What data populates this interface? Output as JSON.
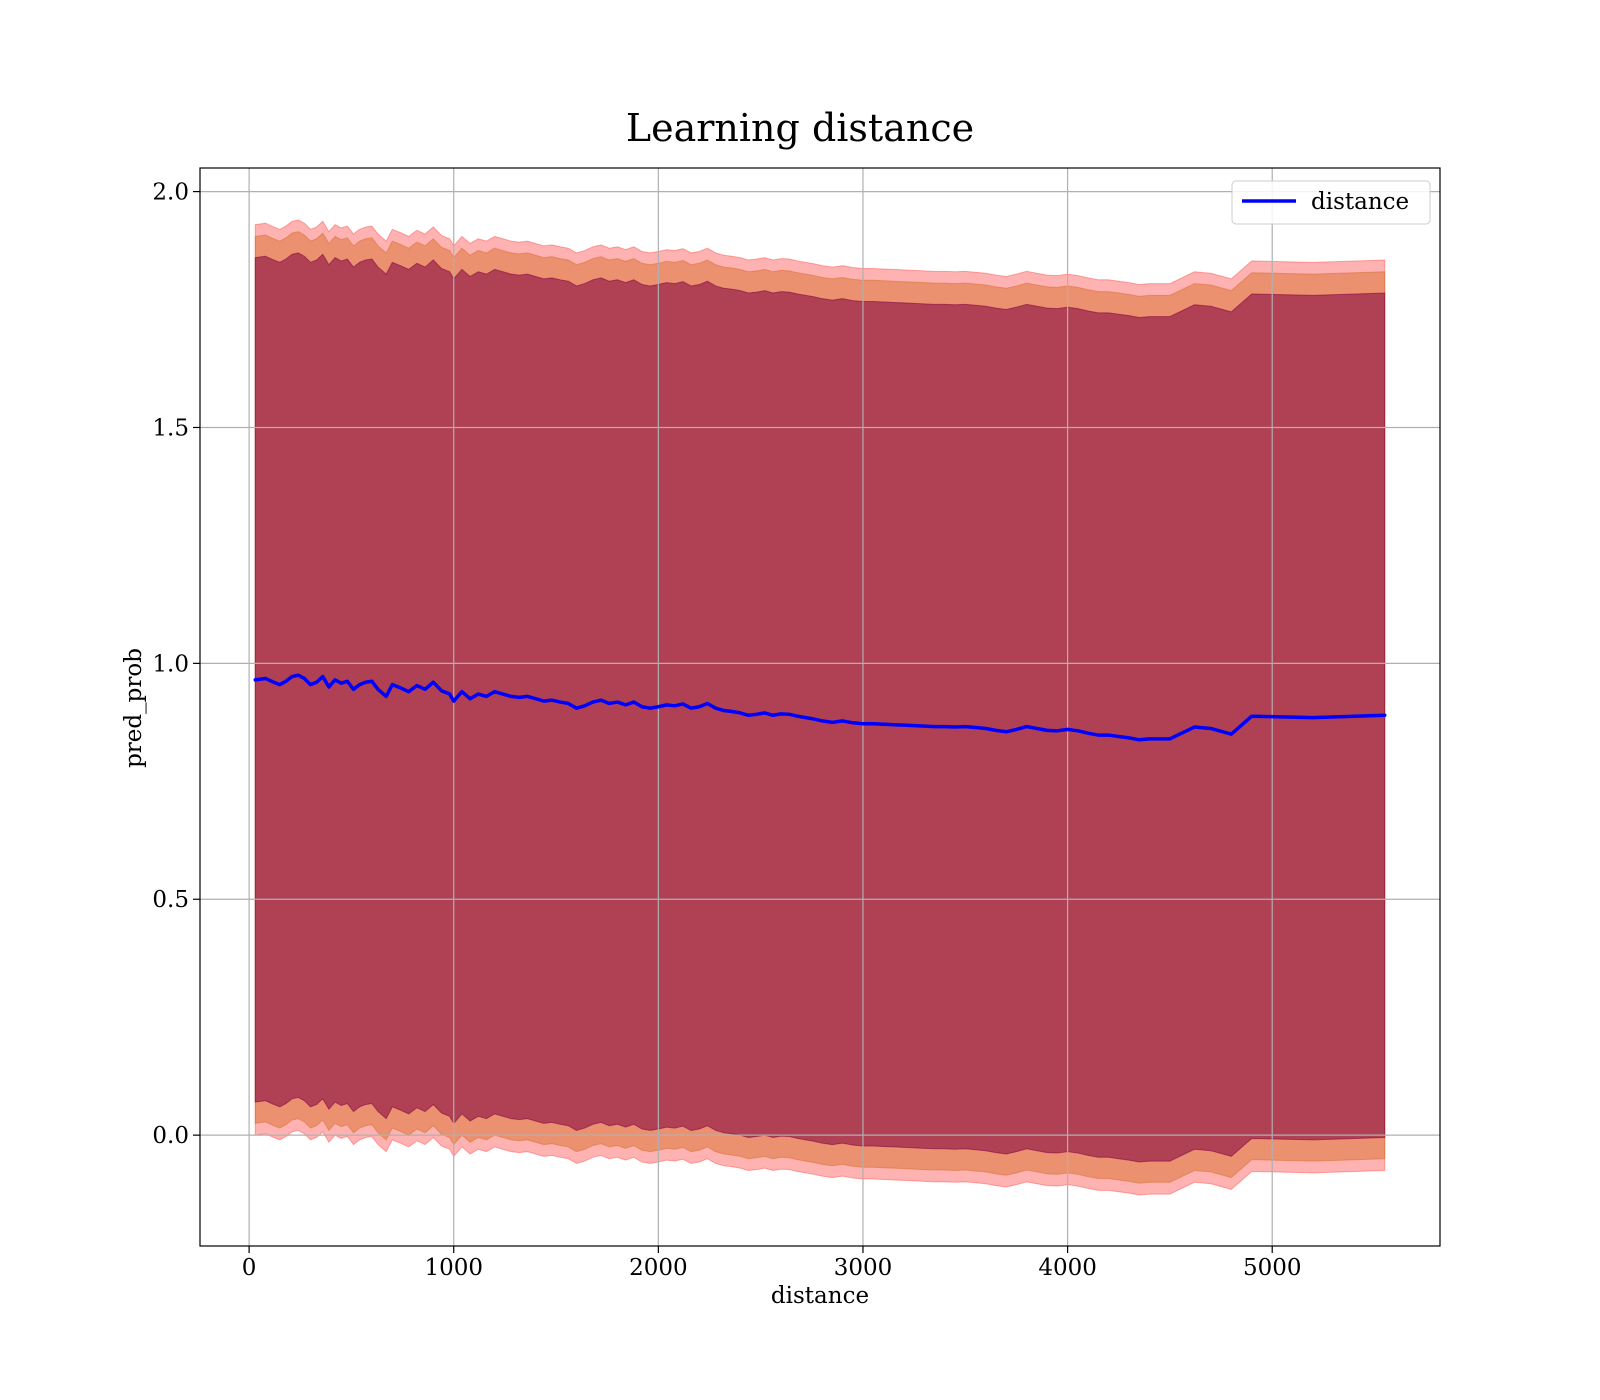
{
  "chart_data": {
    "type": "line",
    "title": "Learning distance",
    "xlabel": "distance",
    "ylabel": "pred_prob",
    "xlim": [
      -240,
      5820
    ],
    "ylim": [
      -0.235,
      2.05
    ],
    "xticks": [
      0,
      1000,
      2000,
      3000,
      4000,
      5000
    ],
    "xtick_labels": [
      "0",
      "1000",
      "2000",
      "3000",
      "4000",
      "5000"
    ],
    "yticks": [
      0.0,
      0.5,
      1.0,
      1.5,
      2.0
    ],
    "ytick_labels": [
      "0.0",
      "0.5",
      "1.0",
      "1.5",
      "2.0"
    ],
    "grid": true,
    "legend": {
      "position": "upper right",
      "entries": [
        "distance"
      ]
    },
    "colors": {
      "line": "#0000ff",
      "band_outer": "#ff0000",
      "band_middle": "#d2691e",
      "band_inner": "#800040",
      "grid": "#b0b0b0"
    },
    "series": [
      {
        "name": "distance",
        "x": [
          30,
          80,
          120,
          150,
          180,
          210,
          240,
          270,
          300,
          330,
          360,
          390,
          420,
          450,
          480,
          510,
          540,
          570,
          600,
          630,
          670,
          700,
          740,
          780,
          820,
          860,
          900,
          940,
          980,
          1000,
          1040,
          1080,
          1120,
          1160,
          1200,
          1240,
          1280,
          1320,
          1360,
          1400,
          1440,
          1480,
          1520,
          1560,
          1600,
          1640,
          1680,
          1720,
          1760,
          1800,
          1840,
          1880,
          1920,
          1960,
          2000,
          2040,
          2080,
          2120,
          2160,
          2200,
          2240,
          2280,
          2320,
          2360,
          2400,
          2440,
          2480,
          2520,
          2560,
          2600,
          2640,
          2680,
          2720,
          2760,
          2800,
          2850,
          2900,
          2950,
          3000,
          3050,
          3100,
          3150,
          3200,
          3250,
          3300,
          3350,
          3400,
          3450,
          3500,
          3550,
          3600,
          3650,
          3700,
          3750,
          3800,
          3850,
          3900,
          3950,
          4000,
          4050,
          4100,
          4150,
          4200,
          4250,
          4300,
          4350,
          4400,
          4500,
          4620,
          4700,
          4800,
          4900,
          5200,
          5550
        ],
        "y": [
          0.965,
          0.968,
          0.96,
          0.955,
          0.962,
          0.972,
          0.975,
          0.968,
          0.955,
          0.96,
          0.972,
          0.95,
          0.965,
          0.958,
          0.962,
          0.945,
          0.955,
          0.96,
          0.962,
          0.945,
          0.93,
          0.955,
          0.948,
          0.94,
          0.953,
          0.945,
          0.96,
          0.942,
          0.935,
          0.92,
          0.94,
          0.925,
          0.935,
          0.93,
          0.94,
          0.935,
          0.93,
          0.928,
          0.93,
          0.925,
          0.92,
          0.922,
          0.918,
          0.915,
          0.905,
          0.91,
          0.918,
          0.922,
          0.915,
          0.918,
          0.912,
          0.918,
          0.908,
          0.905,
          0.908,
          0.912,
          0.91,
          0.914,
          0.905,
          0.908,
          0.915,
          0.905,
          0.9,
          0.898,
          0.895,
          0.89,
          0.892,
          0.895,
          0.89,
          0.893,
          0.892,
          0.888,
          0.885,
          0.882,
          0.878,
          0.875,
          0.878,
          0.874,
          0.872,
          0.872,
          0.871,
          0.87,
          0.869,
          0.868,
          0.867,
          0.866,
          0.866,
          0.865,
          0.866,
          0.864,
          0.862,
          0.858,
          0.855,
          0.86,
          0.866,
          0.862,
          0.858,
          0.857,
          0.86,
          0.857,
          0.852,
          0.848,
          0.848,
          0.845,
          0.842,
          0.838,
          0.84,
          0.84,
          0.865,
          0.862,
          0.85,
          0.888,
          0.885,
          0.89
        ]
      }
    ],
    "bands": [
      {
        "color": "outer",
        "half_width_start": 0.965,
        "half_width_end": 0.965
      },
      {
        "color": "middle",
        "half_width_start": 0.94,
        "half_width_end": 0.94
      },
      {
        "color": "inner",
        "half_width_start": 0.895,
        "half_width_end": 0.895
      }
    ]
  }
}
